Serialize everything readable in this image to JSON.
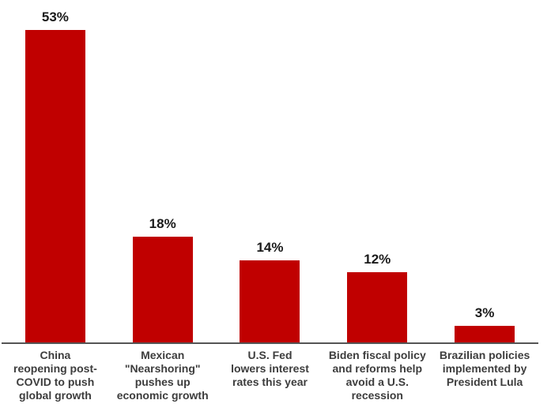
{
  "chart_data": {
    "type": "bar",
    "categories": [
      "China\nreopening post-\nCOVID to push\nglobal growth",
      "Mexican\n\"Nearshoring\"\npushes up\neconomic growth",
      "U.S. Fed\nlowers interest\nrates this year",
      "Biden fiscal policy\nand reforms help\navoid a U.S.\nrecession",
      "Brazilian policies\nimplemented by\nPresident Lula"
    ],
    "values": [
      53,
      18,
      14,
      12,
      3
    ],
    "value_labels": [
      "53%",
      "18%",
      "14%",
      "12%",
      "3%"
    ],
    "title": "",
    "xlabel": "",
    "ylabel": "",
    "ylim": [
      0,
      58
    ],
    "grid": false,
    "legend": false,
    "colors": {
      "bar": "#C00000",
      "value_label": "#1a1a1a",
      "category_label": "#3d3d3d",
      "axis_line": "#555555",
      "background": "#ffffff"
    }
  }
}
